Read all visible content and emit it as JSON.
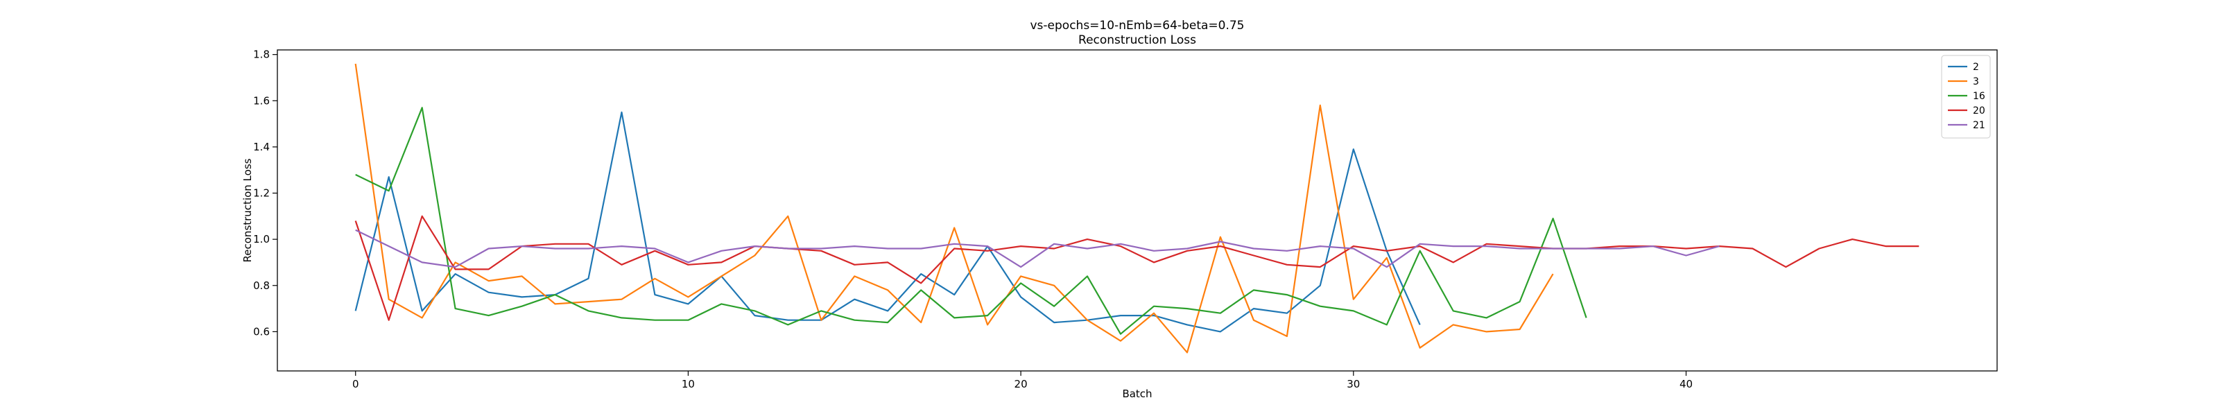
{
  "chart_data": {
    "type": "line",
    "title": "vs-epochs=10-nEmb=64-beta=0.75",
    "subtitle": "Reconstruction Loss",
    "xlabel": "Batch",
    "ylabel": "Reconstruction Loss",
    "xlim": [
      -2.35,
      49.35
    ],
    "ylim": [
      0.43,
      1.82
    ],
    "xticks": [
      0,
      10,
      20,
      30,
      40
    ],
    "yticks": [
      0.6,
      0.8,
      1.0,
      1.2,
      1.4,
      1.6,
      1.8
    ],
    "ytick_labels": [
      "0.6",
      "0.8",
      "1.0",
      "1.2",
      "1.4",
      "1.6",
      "1.8"
    ],
    "grid": false,
    "legend_position": "top-right",
    "series": [
      {
        "name": "2",
        "color": "#1f77b4",
        "values": [
          0.69,
          1.27,
          0.69,
          0.85,
          0.77,
          0.75,
          0.76,
          0.83,
          1.55,
          0.76,
          0.72,
          0.84,
          0.67,
          0.65,
          0.65,
          0.74,
          0.69,
          0.85,
          0.76,
          0.97,
          0.75,
          0.64,
          0.65,
          0.67,
          0.67,
          0.63,
          0.6,
          0.7,
          0.68,
          0.8,
          1.39,
          0.95,
          0.63
        ]
      },
      {
        "name": "3",
        "color": "#ff7f0e",
        "values": [
          1.76,
          0.74,
          0.66,
          0.9,
          0.82,
          0.84,
          0.72,
          0.73,
          0.74,
          0.83,
          0.75,
          0.84,
          0.93,
          1.1,
          0.65,
          0.84,
          0.78,
          0.64,
          1.05,
          0.63,
          0.84,
          0.8,
          0.65,
          0.56,
          0.68,
          0.51,
          1.01,
          0.65,
          0.58,
          1.58,
          0.74,
          0.92,
          0.53,
          0.63,
          0.6,
          0.61,
          0.85
        ]
      },
      {
        "name": "16",
        "color": "#2ca02c",
        "values": [
          1.28,
          1.21,
          1.57,
          0.7,
          0.67,
          0.71,
          0.76,
          0.69,
          0.66,
          0.65,
          0.65,
          0.72,
          0.69,
          0.63,
          0.69,
          0.65,
          0.64,
          0.78,
          0.66,
          0.67,
          0.81,
          0.71,
          0.84,
          0.59,
          0.71,
          0.7,
          0.68,
          0.78,
          0.76,
          0.71,
          0.69,
          0.63,
          0.95,
          0.69,
          0.66,
          0.73,
          1.09,
          0.66
        ]
      },
      {
        "name": "20",
        "color": "#d62728",
        "values": [
          1.08,
          0.65,
          1.1,
          0.87,
          0.87,
          0.97,
          0.98,
          0.98,
          0.89,
          0.95,
          0.89,
          0.9,
          0.97,
          0.96,
          0.95,
          0.89,
          0.9,
          0.81,
          0.96,
          0.95,
          0.97,
          0.96,
          1.0,
          0.97,
          0.9,
          0.95,
          0.97,
          0.93,
          0.89,
          0.88,
          0.97,
          0.95,
          0.97,
          0.9,
          0.98,
          0.97,
          0.96,
          0.96,
          0.97,
          0.97,
          0.96,
          0.97,
          0.96,
          0.88,
          0.96,
          1.0,
          0.97,
          0.97
        ]
      },
      {
        "name": "21",
        "color": "#9467bd",
        "values": [
          1.04,
          0.97,
          0.9,
          0.88,
          0.96,
          0.97,
          0.96,
          0.96,
          0.97,
          0.96,
          0.9,
          0.95,
          0.97,
          0.96,
          0.96,
          0.97,
          0.96,
          0.96,
          0.98,
          0.97,
          0.88,
          0.98,
          0.96,
          0.98,
          0.95,
          0.96,
          0.99,
          0.96,
          0.95,
          0.97,
          0.96,
          0.88,
          0.98,
          0.97,
          0.97,
          0.96,
          0.96,
          0.96,
          0.96,
          0.97,
          0.93,
          0.97
        ]
      }
    ]
  }
}
